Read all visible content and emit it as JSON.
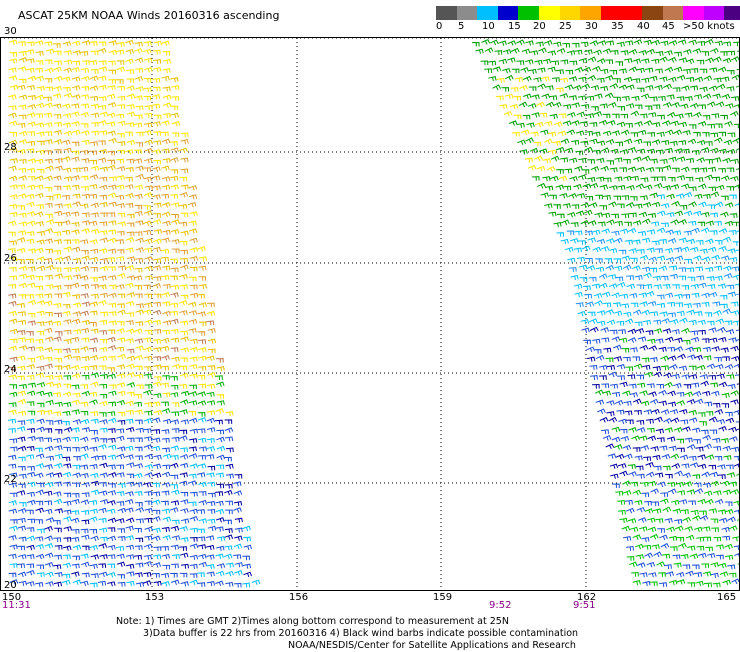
{
  "title": "ASCAT 25KM NOAA Winds 20160316 ascending",
  "legend": {
    "colors": [
      "#555555",
      "#8c8c8c",
      "#00bfff",
      "#0000cd",
      "#00c000",
      "#ffff00",
      "#ffd700",
      "#ffa500",
      "#ff0000",
      "#ff0000",
      "#8b4513",
      "#c07850",
      "#ff00ff",
      "#bf00ff",
      "#4b0082"
    ],
    "ticks": [
      "0",
      "5",
      "10",
      "15",
      "20",
      "25",
      "30",
      "35",
      "40",
      "45",
      ">50 knots"
    ]
  },
  "axes": {
    "y_labels": [
      "30",
      "28",
      "26",
      "24",
      "22",
      "20"
    ],
    "x_labels": [
      "150",
      "153",
      "156",
      "159",
      "162",
      "165"
    ]
  },
  "times": [
    "11:31",
    "9:52",
    "9:51"
  ],
  "notes": {
    "line1": "Note: 1) Times are GMT 2)Times along bottom correspond to measurement at 25N",
    "line2": "3)Data buffer is 22 hrs from 20160316 4) Black wind barbs indicate possible contamination",
    "line3": "NOAA/NESDIS/Center for Satellite Applications and Research"
  }
}
